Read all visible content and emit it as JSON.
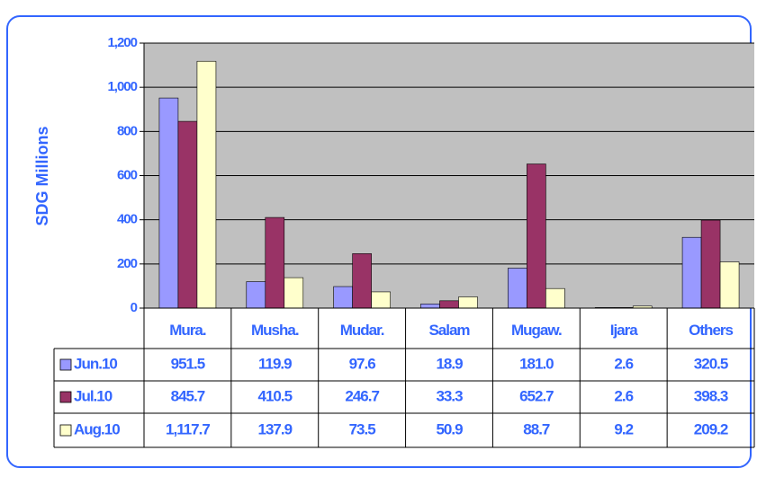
{
  "chart_data": {
    "type": "bar",
    "ylabel": "SDG Millions",
    "categories": [
      "Mura.",
      "Musha.",
      "Mudar.",
      "Salam",
      "Mugaw.",
      "Ijara",
      "Others"
    ],
    "series": [
      {
        "name": "Jun.10",
        "color": "#9999ff",
        "values": [
          951.5,
          119.9,
          97.6,
          18.9,
          181.0,
          2.6,
          320.5
        ],
        "value_labels": [
          "951.5",
          "119.9",
          "97.6",
          "18.9",
          "181.0",
          "2.6",
          "320.5"
        ]
      },
      {
        "name": "Jul.10",
        "color": "#993366",
        "values": [
          845.7,
          410.5,
          246.7,
          33.3,
          652.7,
          2.6,
          398.3
        ],
        "value_labels": [
          "845.7",
          "410.5",
          "246.7",
          "33.3",
          "652.7",
          "2.6",
          "398.3"
        ]
      },
      {
        "name": "Aug.10",
        "color": "#ffffcc",
        "values": [
          1117.7,
          137.9,
          73.5,
          50.9,
          88.7,
          9.2,
          209.2
        ],
        "value_labels": [
          "1,117.7",
          "137.9",
          "73.5",
          "50.9",
          "88.7",
          "9.2",
          "209.2"
        ]
      }
    ],
    "ylim": [
      0,
      1200
    ],
    "yticks": [
      0,
      200,
      400,
      600,
      800,
      {
        "value": 1000,
        "label": "1,000"
      },
      {
        "value": 1200,
        "label": "1,200"
      }
    ],
    "grid": true,
    "plot_background": "#c0c0c0"
  }
}
